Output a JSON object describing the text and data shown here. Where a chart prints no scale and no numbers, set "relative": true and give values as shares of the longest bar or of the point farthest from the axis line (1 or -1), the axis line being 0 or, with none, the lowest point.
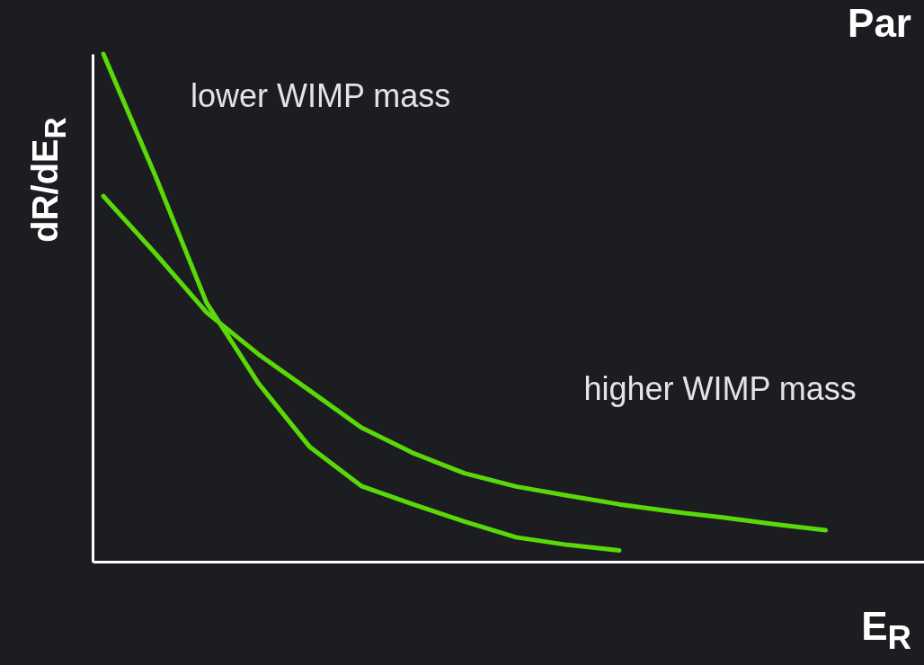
{
  "chart_data": {
    "type": "line",
    "title": "Par",
    "xlabel": "E$_{R}$",
    "ylabel": "dR/dE$_{R}$",
    "relative": true,
    "categories": [
      null,
      null,
      null,
      null,
      null,
      null,
      null,
      null,
      null,
      null,
      null,
      null,
      null,
      null,
      null
    ],
    "series": [
      {
        "name": "lower WIMP mass",
        "color": "#5ad80a",
        "values": [
          1,
          0.762,
          0.51,
          0.352,
          0.226,
          0.149,
          0.113,
          0.079,
          0.048,
          0.033,
          0.022,
          null,
          null,
          null,
          null
        ]
      },
      {
        "name": "higher WIMP mass",
        "color": "#5ad80a",
        "values": [
          0.72,
          0.608,
          0.491,
          0.409,
          0.337,
          0.264,
          0.214,
          0.174,
          0.148,
          0.13,
          0.113,
          0.099,
          0.087,
          0.074,
          0.062
        ]
      }
    ]
  }
}
